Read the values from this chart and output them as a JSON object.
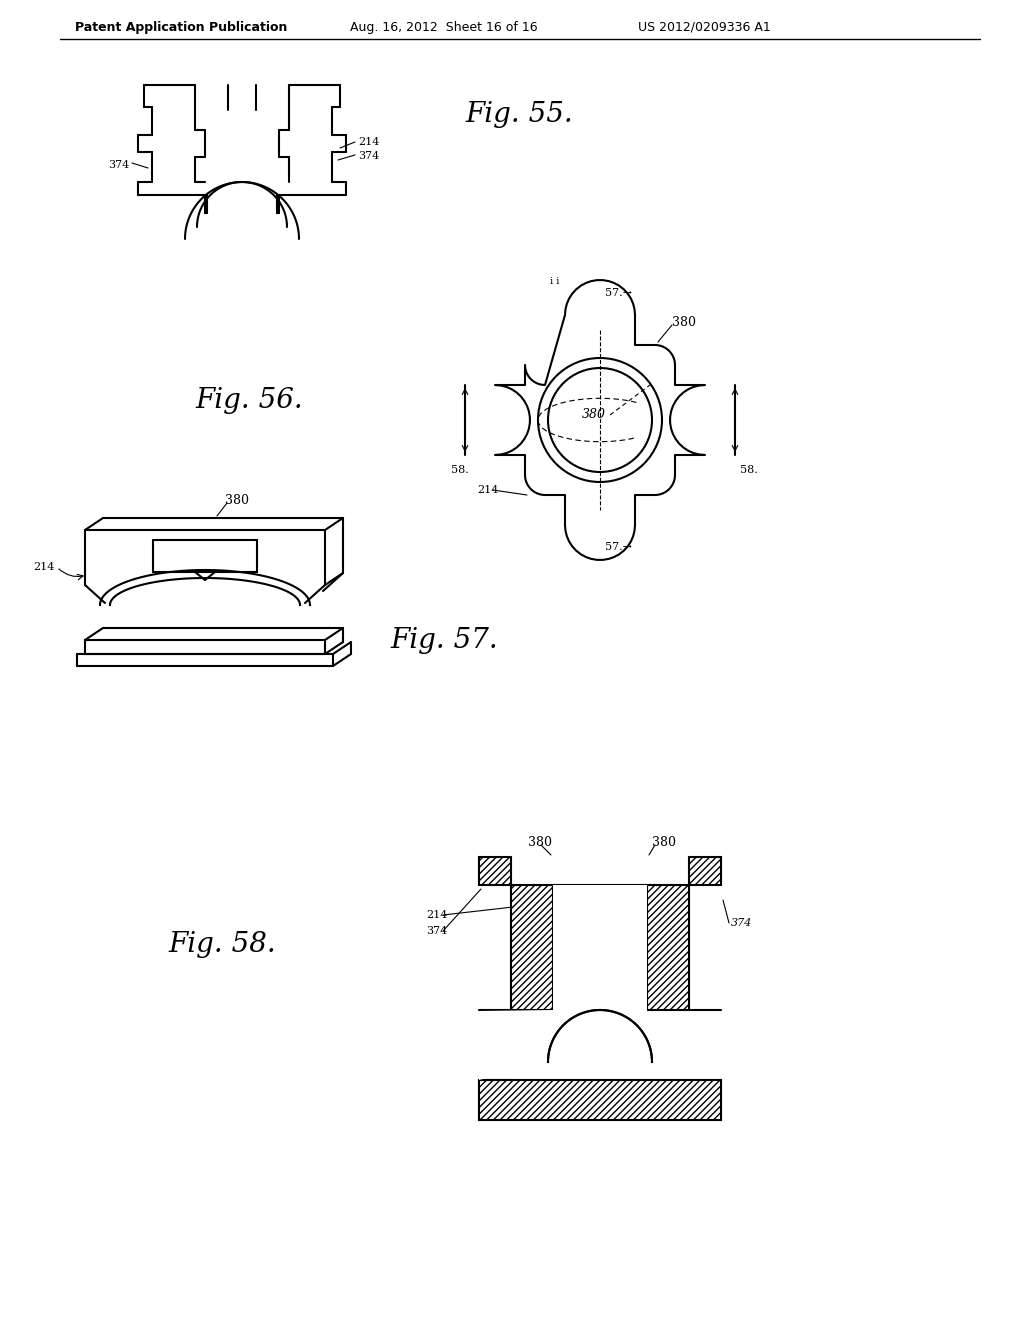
{
  "bg_color": "#ffffff",
  "header_left": "Patent Application Publication",
  "header_mid": "Aug. 16, 2012  Sheet 16 of 16",
  "header_right": "US 2012/0209336 A1",
  "fig55_label": "Fig. 55.",
  "fig56_label": "Fig. 56.",
  "fig57_label": "Fig. 57.",
  "fig58_label": "Fig. 58."
}
